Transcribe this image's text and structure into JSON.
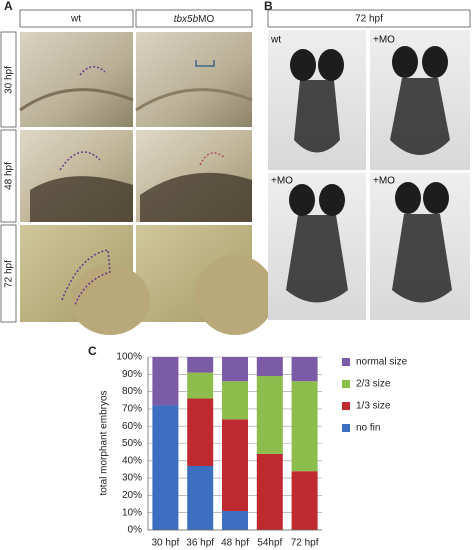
{
  "panel_a": {
    "label": "A",
    "col_headers": [
      {
        "plain": "wt"
      },
      {
        "italic": "tbx5b",
        "plain": "MO"
      }
    ],
    "row_labels": [
      "30 hpf",
      "48 hpf",
      "72 hpf"
    ]
  },
  "panel_b": {
    "label": "B",
    "header": "72 hpf",
    "image_labels": [
      "wt",
      "+MO",
      "+MO",
      "+MO"
    ]
  },
  "chart_data": {
    "type": "stacked_bar",
    "panel_label": "C",
    "ylabel": "total morphant embryos",
    "categories": [
      "30 hpf",
      "36 hpf",
      "48 hpf",
      "54hpf",
      "72 hpf"
    ],
    "series": [
      {
        "name": "no fin",
        "color": "#3d6fc0",
        "values": [
          72,
          37,
          11,
          0,
          0
        ]
      },
      {
        "name": "1/3 size",
        "color": "#bf2a31",
        "values": [
          0,
          39,
          53,
          44,
          34
        ]
      },
      {
        "name": "2/3 size",
        "color": "#8dbd4c",
        "values": [
          0,
          15,
          22,
          45,
          52
        ]
      },
      {
        "name": "normal size",
        "color": "#7b5ba6",
        "values": [
          28,
          9,
          14,
          11,
          14
        ]
      }
    ],
    "ylim": [
      0,
      100
    ],
    "yticks": [
      {
        "value": 0,
        "label": "0%"
      },
      {
        "value": 10,
        "label": "10%"
      },
      {
        "value": 20,
        "label": "20%"
      },
      {
        "value": 30,
        "label": "30%"
      },
      {
        "value": 40,
        "label": "40%"
      },
      {
        "value": 50,
        "label": "50%"
      },
      {
        "value": 60,
        "label": "60%"
      },
      {
        "value": 70,
        "label": "70%"
      },
      {
        "value": 80,
        "label": "80%"
      },
      {
        "value": 90,
        "label": "90%"
      },
      {
        "value": 100,
        "label": "100%"
      }
    ],
    "grid": true
  }
}
